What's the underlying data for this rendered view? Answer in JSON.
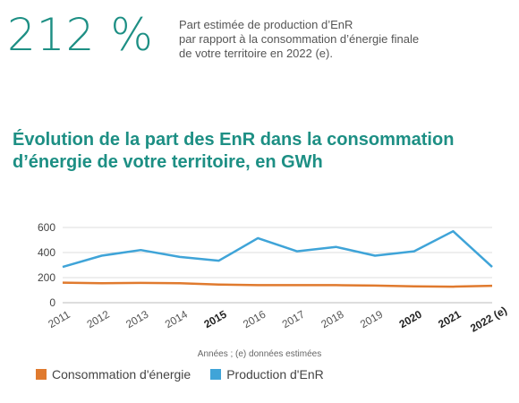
{
  "kpi": {
    "value": "212 %",
    "description_lines": [
      "Part estimée de production d’EnR",
      "par rapport à la consommation d’énergie finale",
      "de votre territoire en 2022 (e)."
    ]
  },
  "colors": {
    "accent": "#1d8f84",
    "consumption": "#e07a2e",
    "production": "#3fa4d8",
    "grid": "#dddddd"
  },
  "chart_data": {
    "type": "line",
    "title": "Évolution de la part des EnR dans la consommation d’énergie de votre territoire, en GWh",
    "title_lines": [
      "Évolution de la part des EnR dans la consommation",
      "d’énergie de votre territoire, en GWh"
    ],
    "xlabel": "Années ; (e) données estimées",
    "ylabel": "",
    "ylim": [
      0,
      600
    ],
    "yticks": [
      0,
      200,
      400,
      600
    ],
    "grid": true,
    "legend_position": "bottom-left",
    "categories": [
      "2011",
      "2012",
      "2013",
      "2014",
      "2015",
      "2016",
      "2017",
      "2018",
      "2019",
      "2020",
      "2021",
      "2022 (e)"
    ],
    "bold_categories": [
      "2015",
      "2020",
      "2021",
      "2022 (e)"
    ],
    "series": [
      {
        "name": "Consommation d'énergie",
        "color": "#e07a2e",
        "values": [
          160,
          155,
          158,
          155,
          145,
          140,
          140,
          140,
          137,
          130,
          128,
          135
        ]
      },
      {
        "name": "Production d'EnR",
        "color": "#3fa4d8",
        "values": [
          285,
          375,
          420,
          365,
          335,
          515,
          410,
          445,
          375,
          410,
          570,
          285
        ]
      }
    ]
  }
}
